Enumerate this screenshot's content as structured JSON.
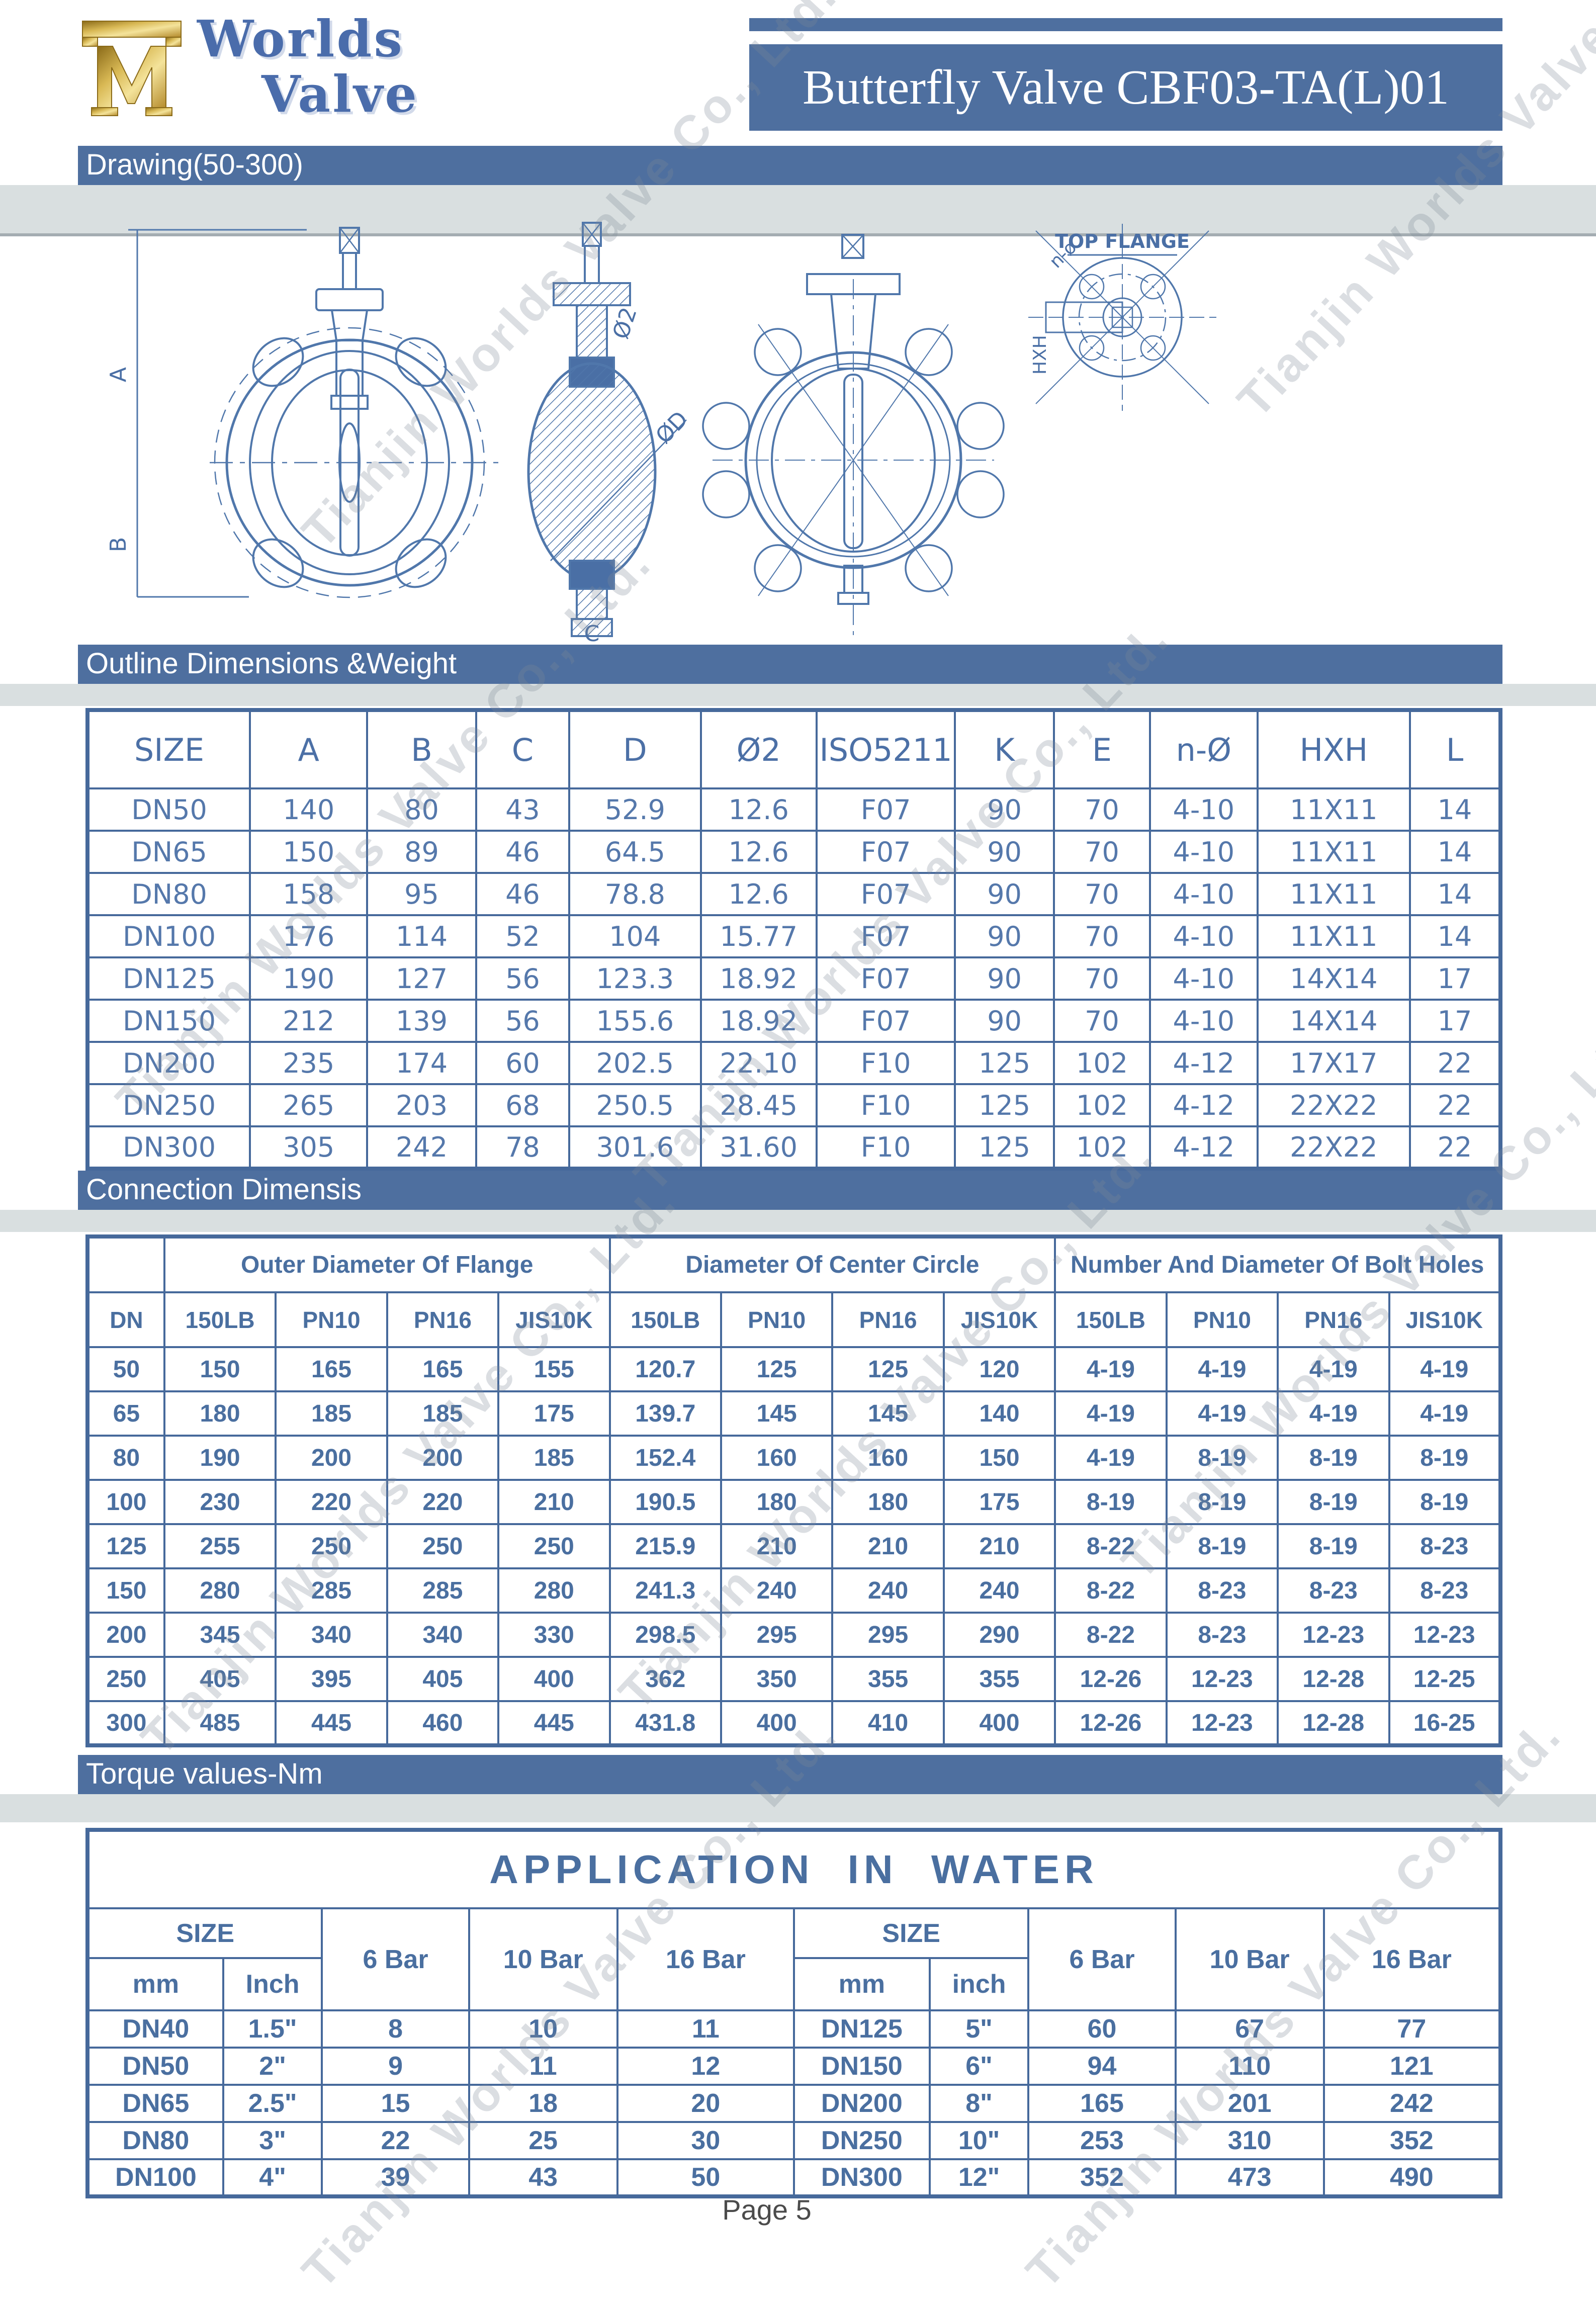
{
  "colors": {
    "bar_blue": "#4e6f9f",
    "border_blue": "#46699b",
    "table_text_blue": "#4a6fa0",
    "logo_blue": "#4a6cab",
    "logo_gold": "#cfa843",
    "band_gray": "#d9dfe0"
  },
  "header": {
    "logo_line1": "Worlds",
    "logo_line2": "Valve",
    "title": "Butterfly Valve  CBF03-TA(L)01"
  },
  "section_bars": {
    "drawing": "Drawing(50-300)",
    "outline": "Outline Dimensions &Weight",
    "connection": "Connection Dimensis",
    "torque": "Torque values-Nm"
  },
  "drawing_labels": {
    "dim_a": "A",
    "dim_b": "B",
    "dim_c": "C",
    "phi2": "Ø2",
    "phi_d": "ØD",
    "top_flange": "TOP FLANGE",
    "n_phi": "n-ø",
    "hxh": "HXH"
  },
  "outline_table": {
    "columns": [
      "SIZE",
      "A",
      "B",
      "C",
      "D",
      "Ø2",
      "ISO5211",
      "K",
      "E",
      "n-Ø",
      "HXH",
      "L"
    ],
    "rows": [
      [
        "DN50",
        "140",
        "80",
        "43",
        "52.9",
        "12.6",
        "F07",
        "90",
        "70",
        "4-10",
        "11X11",
        "14"
      ],
      [
        "DN65",
        "150",
        "89",
        "46",
        "64.5",
        "12.6",
        "F07",
        "90",
        "70",
        "4-10",
        "11X11",
        "14"
      ],
      [
        "DN80",
        "158",
        "95",
        "46",
        "78.8",
        "12.6",
        "F07",
        "90",
        "70",
        "4-10",
        "11X11",
        "14"
      ],
      [
        "DN100",
        "176",
        "114",
        "52",
        "104",
        "15.77",
        "F07",
        "90",
        "70",
        "4-10",
        "11X11",
        "14"
      ],
      [
        "DN125",
        "190",
        "127",
        "56",
        "123.3",
        "18.92",
        "F07",
        "90",
        "70",
        "4-10",
        "14X14",
        "17"
      ],
      [
        "DN150",
        "212",
        "139",
        "56",
        "155.6",
        "18.92",
        "F07",
        "90",
        "70",
        "4-10",
        "14X14",
        "17"
      ],
      [
        "DN200",
        "235",
        "174",
        "60",
        "202.5",
        "22.10",
        "F10",
        "125",
        "102",
        "4-12",
        "17X17",
        "22"
      ],
      [
        "DN250",
        "265",
        "203",
        "68",
        "250.5",
        "28.45",
        "F10",
        "125",
        "102",
        "4-12",
        "22X22",
        "22"
      ],
      [
        "DN300",
        "305",
        "242",
        "78",
        "301.6",
        "31.60",
        "F10",
        "125",
        "102",
        "4-12",
        "22X22",
        "22"
      ]
    ]
  },
  "connection_table": {
    "dn_label": "DN",
    "groups": [
      "Outer Diameter Of Flange",
      "Diameter Of Center  Circle",
      "Number And Diameter Of Bolt Holes"
    ],
    "sub_columns": [
      "150LB",
      "PN10",
      "PN16",
      "JIS10K"
    ],
    "rows": [
      [
        "50",
        "150",
        "165",
        "165",
        "155",
        "120.7",
        "125",
        "125",
        "120",
        "4-19",
        "4-19",
        "4-19",
        "4-19"
      ],
      [
        "65",
        "180",
        "185",
        "185",
        "175",
        "139.7",
        "145",
        "145",
        "140",
        "4-19",
        "4-19",
        "4-19",
        "4-19"
      ],
      [
        "80",
        "190",
        "200",
        "200",
        "185",
        "152.4",
        "160",
        "160",
        "150",
        "4-19",
        "8-19",
        "8-19",
        "8-19"
      ],
      [
        "100",
        "230",
        "220",
        "220",
        "210",
        "190.5",
        "180",
        "180",
        "175",
        "8-19",
        "8-19",
        "8-19",
        "8-19"
      ],
      [
        "125",
        "255",
        "250",
        "250",
        "250",
        "215.9",
        "210",
        "210",
        "210",
        "8-22",
        "8-19",
        "8-19",
        "8-23"
      ],
      [
        "150",
        "280",
        "285",
        "285",
        "280",
        "241.3",
        "240",
        "240",
        "240",
        "8-22",
        "8-23",
        "8-23",
        "8-23"
      ],
      [
        "200",
        "345",
        "340",
        "340",
        "330",
        "298.5",
        "295",
        "295",
        "290",
        "8-22",
        "8-23",
        "12-23",
        "12-23"
      ],
      [
        "250",
        "405",
        "395",
        "405",
        "400",
        "362",
        "350",
        "355",
        "355",
        "12-26",
        "12-23",
        "12-28",
        "12-25"
      ],
      [
        "300",
        "485",
        "445",
        "460",
        "445",
        "431.8",
        "400",
        "410",
        "400",
        "12-26",
        "12-23",
        "12-28",
        "16-25"
      ]
    ]
  },
  "application_table": {
    "title": "APPLICATION IN WATER",
    "size_label": "SIZE",
    "mm_label": "mm",
    "inch_label_left": "Inch",
    "inch_label_right": "inch",
    "pressure_columns": [
      "6 Bar",
      "10 Bar",
      "16 Bar"
    ],
    "rows": [
      [
        "DN40",
        "1.5\"",
        "8",
        "10",
        "11",
        "DN125",
        "5\"",
        "60",
        "67",
        "77"
      ],
      [
        "DN50",
        "2\"",
        "9",
        "11",
        "12",
        "DN150",
        "6\"",
        "94",
        "110",
        "121"
      ],
      [
        "DN65",
        "2.5\"",
        "15",
        "18",
        "20",
        "DN200",
        "8\"",
        "165",
        "201",
        "242"
      ],
      [
        "DN80",
        "3\"",
        "22",
        "25",
        "30",
        "DN250",
        "10\"",
        "253",
        "310",
        "352"
      ],
      [
        "DN100",
        "4\"",
        "39",
        "43",
        "50",
        "DN300",
        "12\"",
        "352",
        "473",
        "490"
      ]
    ]
  },
  "footer": {
    "page_number": "Page 5"
  },
  "watermark_text": "Tianjin Worlds Valve Co., Ltd."
}
